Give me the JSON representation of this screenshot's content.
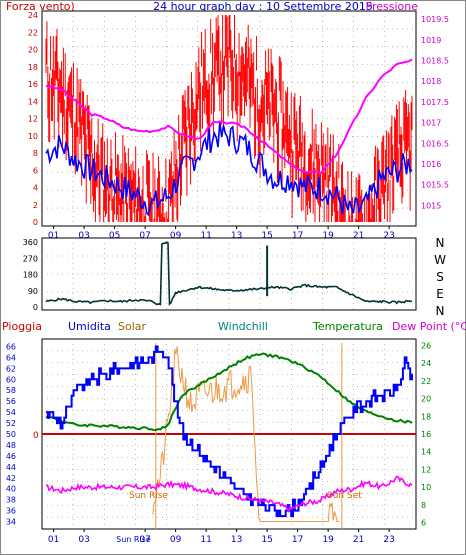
{
  "header": {
    "left_label": "Forza vento)",
    "title": "24 hour graph day : 10 Settembre 2015",
    "right_label": "Pressione"
  },
  "colors": {
    "wind": "#ff0000",
    "gust": "#ff0000",
    "pressure": "#ff00ff",
    "humidity": "#0000ff",
    "solar": "#ee9944",
    "windchill": "#008080",
    "temperature": "#008000",
    "dewpoint": "#ff00ff",
    "rain": "#cc0000",
    "direction": "#003333",
    "axis_blue": "#0000cc",
    "axis_teal": "#00aaaa",
    "axis_orange": "#cc6600"
  },
  "legend": {
    "pioggia": "Pioggia",
    "umidita": "Umidita",
    "solar": "Solar",
    "windchill": "Windchill",
    "temperatura": "Temperatura",
    "dewpoint": "Dew Point (°C)"
  },
  "annotations": {
    "sun_rise": "Sun Rise",
    "sun_set": "Sun Set",
    "rain_zero": "0",
    "xaxis_sunrise_label": "Sun Rise"
  },
  "chart_data": [
    {
      "id": "wind-pressure",
      "type": "line",
      "x_ticks": [
        "01",
        "03",
        "05",
        "07",
        "09",
        "11",
        "13",
        "15",
        "17",
        "19",
        "21",
        "23"
      ],
      "ylabel_left": "Forza vento)",
      "ylabel_right": "Pressione",
      "y_left_ticks": [
        0,
        2,
        4,
        6,
        8,
        10,
        12,
        14,
        16,
        18,
        20,
        22,
        24
      ],
      "ylim_left": [
        0,
        24
      ],
      "y_right_ticks": [
        1015,
        1015.5,
        1016,
        1016.5,
        1017,
        1017.5,
        1018,
        1018.5,
        1019,
        1019.5
      ],
      "ylim_right": [
        1014.6,
        1019.6
      ],
      "series": [
        {
          "kind": "wind_avg",
          "x": [
            0,
            1,
            2,
            3,
            4,
            5,
            6,
            7,
            8,
            9,
            10,
            11,
            12,
            13,
            14,
            15,
            16,
            17,
            18,
            19,
            20,
            21,
            22,
            23,
            24
          ],
          "values": [
            8,
            9,
            7,
            6,
            5,
            4,
            3,
            2,
            3,
            6,
            8,
            10,
            10,
            9,
            7,
            5,
            5,
            4,
            4,
            3,
            1,
            2,
            5,
            6,
            7
          ]
        },
        {
          "kind": "gust",
          "x": [
            0,
            1,
            2,
            3,
            4,
            5,
            6,
            7,
            8,
            9,
            10,
            11,
            12,
            13,
            14,
            15,
            16,
            17,
            18,
            19,
            20,
            21,
            22,
            23,
            24
          ],
          "values": [
            20,
            18,
            15,
            10,
            7,
            6,
            5,
            4,
            4,
            12,
            18,
            20,
            22,
            20,
            17,
            16,
            13,
            10,
            9,
            6,
            2,
            2,
            7,
            10,
            12
          ]
        },
        {
          "kind": "pressure",
          "x": [
            0,
            1,
            2,
            3,
            4,
            5,
            6,
            7,
            8,
            9,
            10,
            11,
            12,
            13,
            14,
            15,
            16,
            17,
            18,
            19,
            20,
            21,
            22,
            23,
            24
          ],
          "values": [
            1017.9,
            1017.8,
            1017.5,
            1017.2,
            1017.1,
            1016.9,
            1016.8,
            1016.8,
            1016.9,
            1016.7,
            1016.6,
            1017.0,
            1017.0,
            1016.9,
            1016.6,
            1016.3,
            1016.0,
            1015.8,
            1015.8,
            1016.2,
            1016.9,
            1017.6,
            1018.1,
            1018.4,
            1018.5
          ]
        }
      ]
    },
    {
      "id": "wind-direction",
      "type": "line",
      "y_ticks": [
        0,
        90,
        180,
        270,
        360
      ],
      "ylim": [
        0,
        360
      ],
      "right_labels": [
        "N",
        "W",
        "S",
        "E",
        "N"
      ],
      "series": [
        {
          "kind": "direction",
          "x": [
            0,
            1,
            2,
            3,
            4,
            5,
            6,
            7,
            7.5,
            7.6,
            8,
            8.1,
            8.5,
            9,
            10,
            11,
            12,
            13,
            14,
            15,
            16,
            17,
            18,
            19,
            20,
            21,
            22,
            23,
            24
          ],
          "values": [
            30,
            45,
            30,
            25,
            35,
            30,
            40,
            30,
            10,
            350,
            360,
            10,
            80,
            90,
            110,
            100,
            90,
            95,
            100,
            110,
            100,
            120,
            110,
            110,
            70,
            30,
            30,
            25,
            35
          ]
        }
      ]
    },
    {
      "id": "humidity-temp",
      "type": "line",
      "y_left_ticks": [
        34,
        36,
        38,
        40,
        42,
        44,
        46,
        48,
        50,
        52,
        54,
        56,
        58,
        60,
        62,
        64,
        66
      ],
      "ylim_left": [
        33,
        67
      ],
      "y_right_ticks": [
        6,
        8,
        10,
        12,
        14,
        16,
        18,
        20,
        22,
        24,
        26
      ],
      "ylim_right": [
        5.5,
        26.5
      ],
      "series": [
        {
          "kind": "humidity",
          "x": [
            0,
            1,
            2,
            3,
            4,
            5,
            6,
            7,
            7.5,
            8,
            8.5,
            9,
            10,
            11,
            12,
            13,
            14,
            15,
            16,
            17,
            18,
            19,
            20,
            21,
            22,
            23,
            23.5,
            24
          ],
          "values": [
            54,
            52,
            58,
            60,
            61,
            62,
            63,
            64,
            66,
            64,
            55,
            50,
            47,
            44,
            41,
            39,
            37,
            36,
            36,
            39,
            44,
            50,
            54,
            56,
            57,
            58,
            63,
            60
          ]
        },
        {
          "kind": "temperature",
          "x": [
            0,
            1,
            2,
            3,
            4,
            5,
            6,
            7,
            7.5,
            8,
            8.5,
            9,
            10,
            11,
            12,
            13,
            14,
            15,
            16,
            17,
            18,
            19,
            20,
            21,
            22,
            23,
            24
          ],
          "values": [
            18,
            17.5,
            17,
            17,
            16.9,
            16.8,
            16.7,
            16.6,
            16.5,
            17,
            19,
            20.5,
            21.5,
            22.5,
            23.5,
            24.5,
            25,
            24.8,
            24.3,
            23.5,
            22.5,
            21,
            19.5,
            18.5,
            18,
            17.5,
            17.3
          ]
        },
        {
          "kind": "dewpoint",
          "x": [
            0,
            1,
            2,
            3,
            4,
            5,
            6,
            7,
            8,
            9,
            10,
            11,
            12,
            13,
            14,
            15,
            16,
            17,
            18,
            19,
            20,
            21,
            22,
            23,
            24
          ],
          "values": [
            10,
            9.6,
            10,
            10,
            10,
            10,
            10,
            10,
            10.3,
            10.2,
            9.8,
            9.5,
            9.2,
            8.8,
            8.5,
            8.2,
            7.5,
            8.2,
            8.5,
            9.5,
            9.8,
            10.5,
            10,
            11,
            10.2
          ]
        },
        {
          "kind": "solar",
          "x": [
            7,
            7.5,
            8,
            8.5,
            9,
            9.5,
            10,
            11,
            12,
            13,
            13.5,
            14,
            14.3,
            14.7,
            15,
            15.5,
            16,
            16.5,
            17,
            17.5,
            18,
            18.5,
            19,
            19.3
          ],
          "values": [
            38,
            42,
            52,
            64,
            60,
            55,
            57,
            58,
            59,
            60,
            61,
            30,
            20,
            14,
            10,
            5,
            15,
            25,
            18,
            10,
            2,
            35,
            37,
            25
          ]
        }
      ]
    }
  ]
}
